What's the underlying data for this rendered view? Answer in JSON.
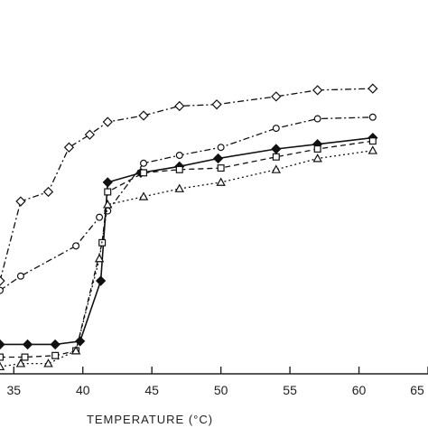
{
  "chart_data": {
    "type": "line",
    "title": "",
    "xlabel": "TEMPERATURE (°C)",
    "ylabel": "",
    "xlim": [
      34,
      65
    ],
    "ylim": [
      0,
      100
    ],
    "xticks": [
      35,
      40,
      45,
      50,
      55,
      60,
      65
    ],
    "grid": false,
    "series": [
      {
        "marker": "diamond-open",
        "line": "dash-dot",
        "x": [
          34,
          35.5,
          37.5,
          39,
          40.5,
          41.8,
          44.4,
          47,
          49.7,
          54,
          57,
          61
        ],
        "y": [
          23,
          48,
          51,
          65,
          69,
          73,
          75,
          78,
          78.5,
          81,
          83,
          83.5
        ]
      },
      {
        "marker": "circle-open",
        "line": "dash-dot",
        "x": [
          34,
          35.5,
          39.5,
          41.2,
          41.8,
          44.4,
          47,
          50,
          54,
          57,
          61
        ],
        "y": [
          20,
          24.5,
          34,
          43,
          45,
          60,
          62.5,
          65,
          71,
          74,
          74.5
        ]
      },
      {
        "marker": "diamond-filled",
        "line": "solid",
        "x": [
          34,
          36,
          38,
          39.8,
          41.3,
          41.8,
          44.2,
          47,
          49.8,
          54,
          57,
          61
        ],
        "y": [
          3,
          3,
          3,
          4,
          23,
          54,
          57,
          59,
          61.5,
          64.5,
          66,
          68
        ]
      },
      {
        "marker": "square-open",
        "line": "dashed",
        "x": [
          34,
          35.8,
          38,
          39.5,
          41.4,
          41.8,
          44.4,
          47,
          50,
          54,
          57,
          61
        ],
        "y": [
          -1,
          -1,
          -0.5,
          1,
          35,
          51,
          57,
          58,
          58.5,
          62,
          64.5,
          67
        ]
      },
      {
        "marker": "triangle-open",
        "line": "dotted",
        "x": [
          34,
          35.5,
          37.5,
          39.5,
          41.2,
          41.8,
          44.4,
          47,
          50,
          54,
          57,
          61
        ],
        "y": [
          -4,
          -3,
          -3,
          1,
          30,
          47,
          49.5,
          52,
          54,
          58,
          61.5,
          64
        ]
      }
    ]
  }
}
